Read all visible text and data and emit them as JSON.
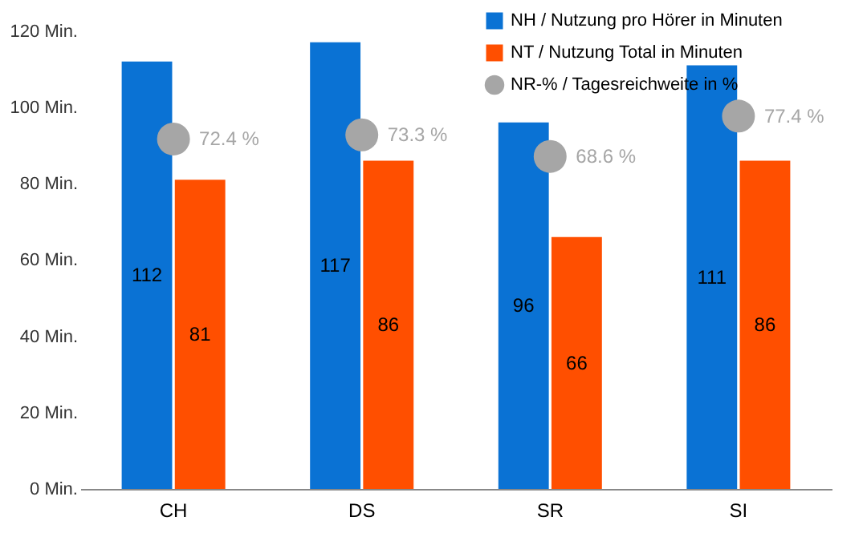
{
  "chart_data": {
    "type": "bar",
    "categories": [
      "CH",
      "DS",
      "SR",
      "SI"
    ],
    "series": [
      {
        "name": "NH / Nutzung pro Hörer in Minuten",
        "color": "#0a72d4",
        "values": [
          112,
          117,
          96,
          111
        ]
      },
      {
        "name": "NT / Nutzung Total in Minuten",
        "color": "#ff4f00",
        "values": [
          81,
          86,
          66,
          86
        ]
      },
      {
        "name": "NR-% / Tagesreichweite in %",
        "color": "#a6a6a6",
        "type": "scatter",
        "axis": "y2",
        "values": [
          72.4,
          73.3,
          68.6,
          77.4
        ],
        "value_labels": [
          "72.4 %",
          "73.3 %",
          "68.6 %",
          "77.4 %"
        ]
      }
    ],
    "ylim": [
      0,
      126
    ],
    "yticks": [
      {
        "value": 0,
        "label": "0 Min."
      },
      {
        "value": 20,
        "label": "20 Min."
      },
      {
        "value": 40,
        "label": "40 Min."
      },
      {
        "value": 60,
        "label": "60 Min."
      },
      {
        "value": 80,
        "label": "80 Min."
      },
      {
        "value": 100,
        "label": "100 Min."
      },
      {
        "value": 120,
        "label": "120 Min."
      }
    ],
    "y2lim": [
      -4,
      101
    ],
    "data_labels": true,
    "grid": false,
    "legend": "top right",
    "marker": "circle"
  }
}
